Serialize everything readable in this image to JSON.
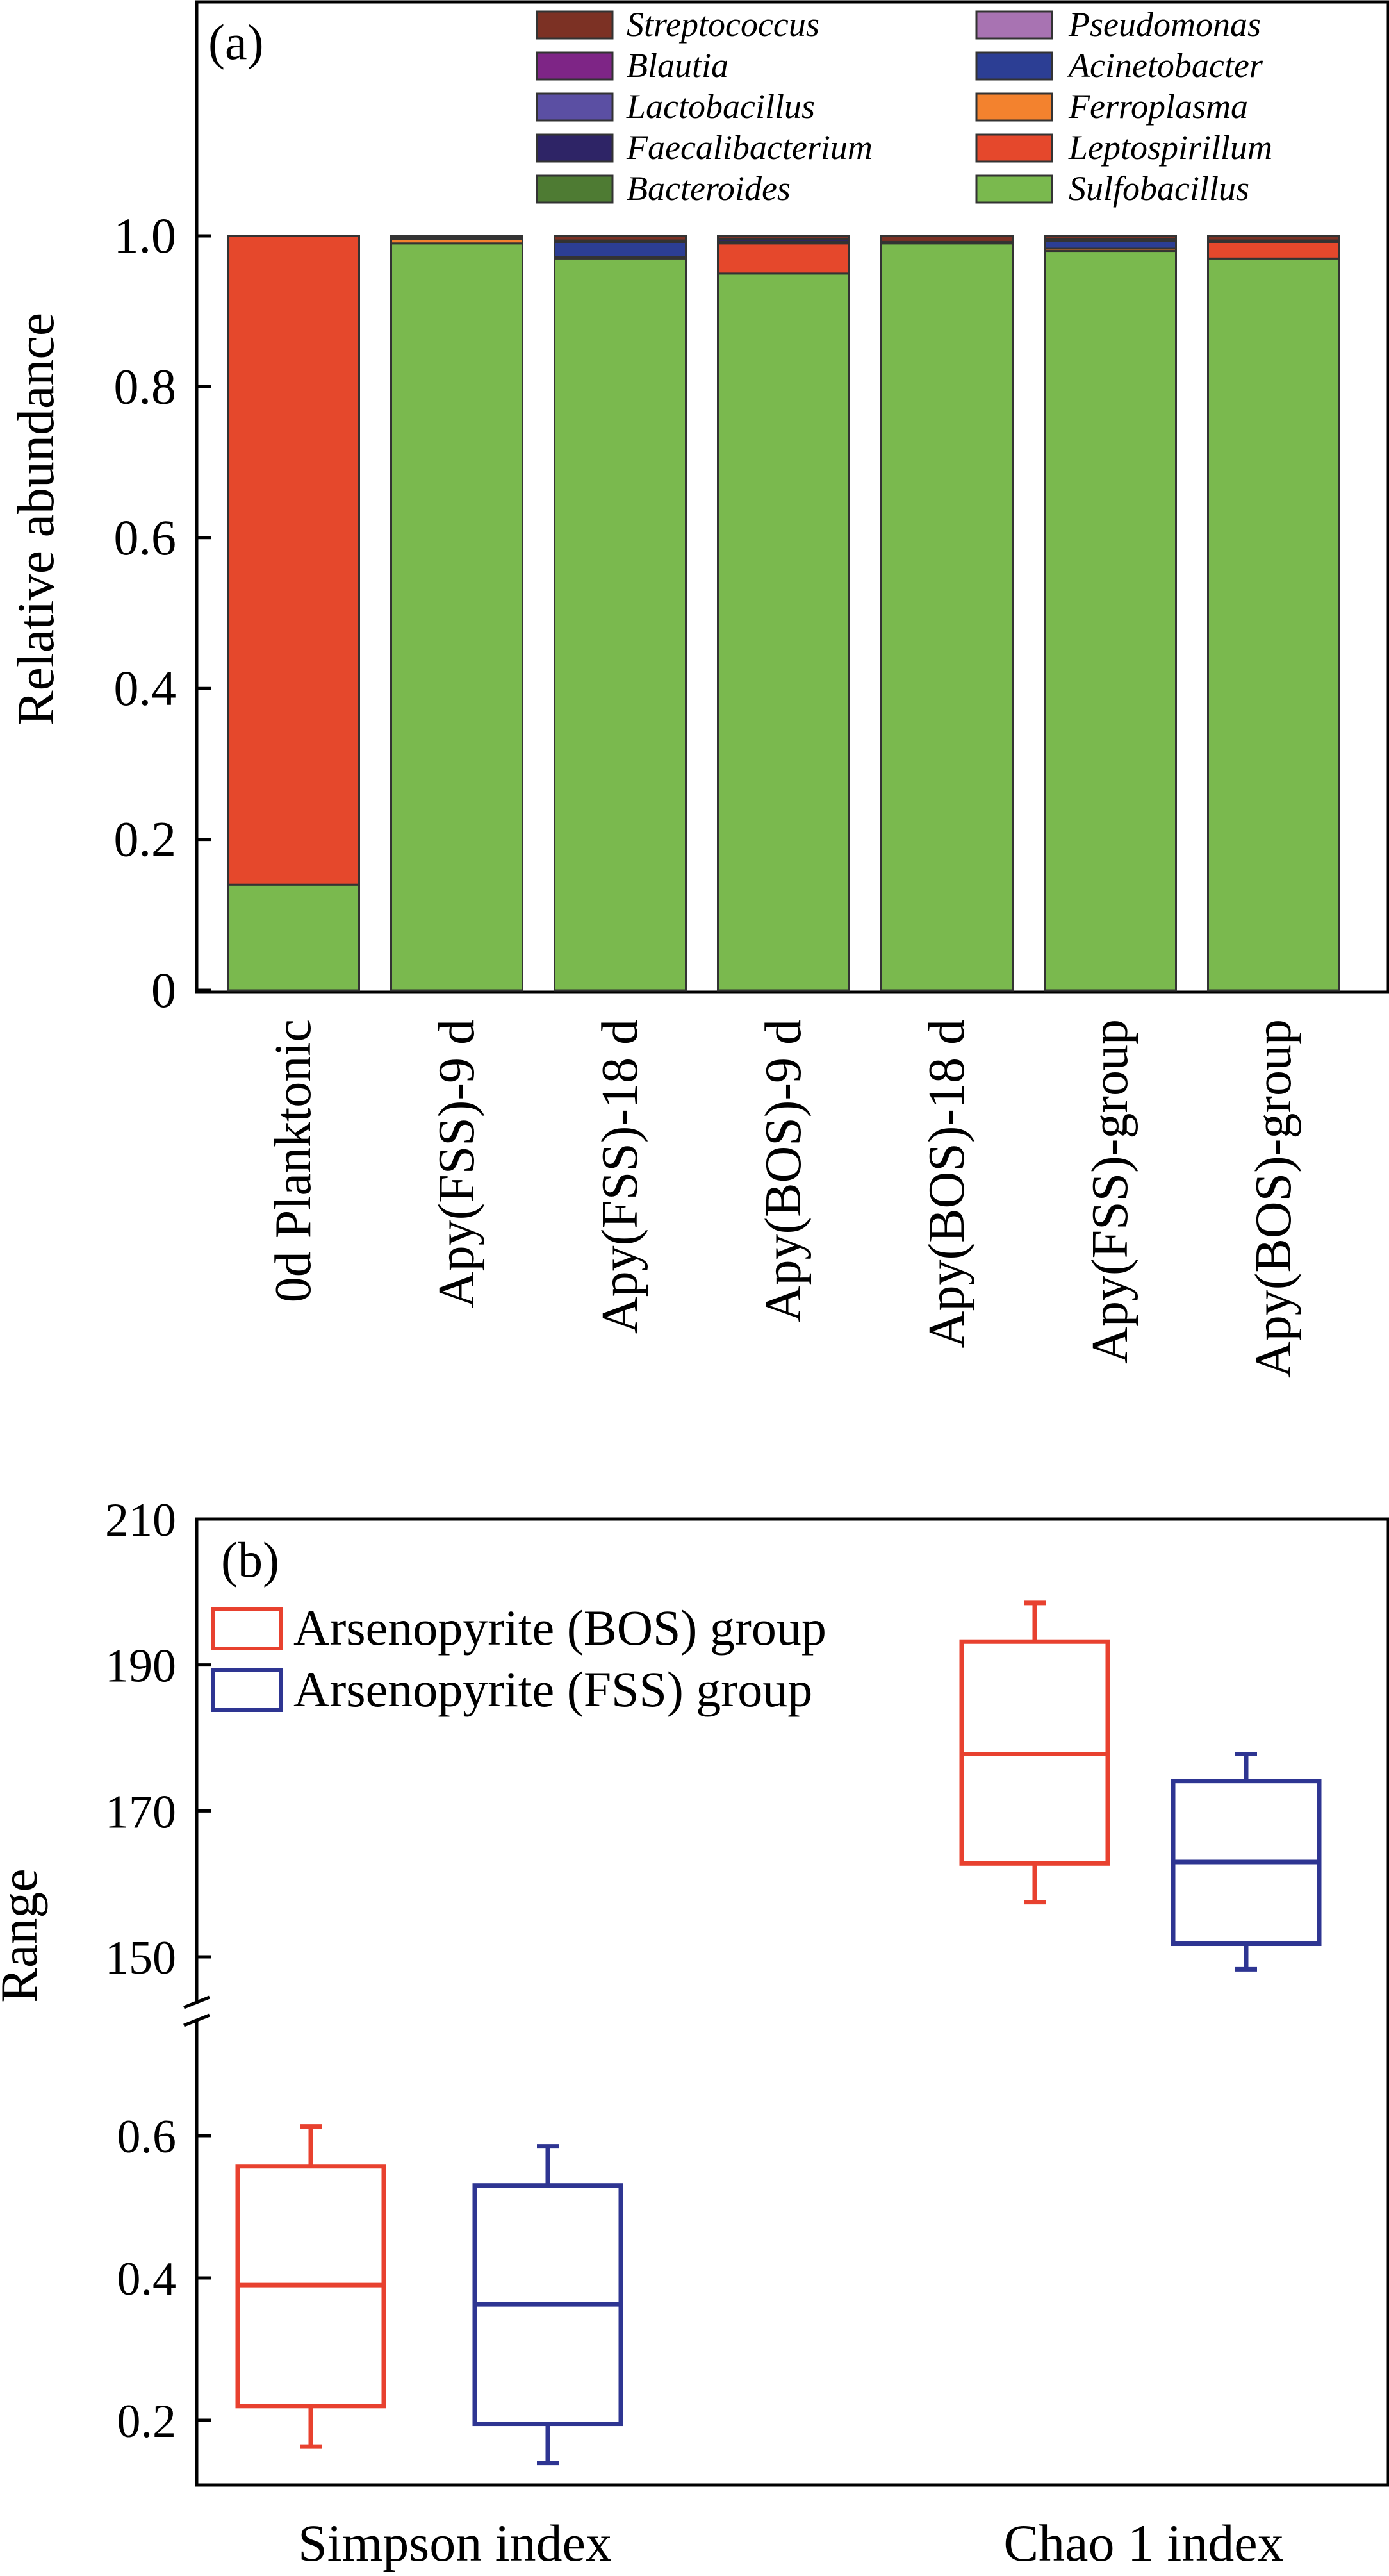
{
  "chart_data": [
    {
      "panel": "(a)",
      "type": "bar",
      "stacked": true,
      "ylabel": "Relative abundance",
      "ylim": [
        0,
        1.0
      ],
      "yticks": [
        "0",
        "0.2",
        "0.4",
        "0.6",
        "0.8",
        "1.0"
      ],
      "grid": false,
      "legend_position": "top",
      "categories": [
        "0d Planktonic",
        "Apy(FSS)-9 d",
        "Apy(FSS)-18 d",
        "Apy(BOS)-9 d",
        "Apy(BOS)-18 d",
        "Apy(FSS)-group",
        "Apy(BOS)-group"
      ],
      "series": [
        {
          "name": "Sulfobacillus",
          "color": "#7ab94e",
          "values": [
            0.14,
            0.99,
            0.97,
            0.95,
            0.99,
            0.98,
            0.97
          ]
        },
        {
          "name": "Leptospirillum",
          "color": "#e5482c",
          "values": [
            0.86,
            0.0,
            0.0,
            0.04,
            0.0,
            0.0,
            0.022
          ]
        },
        {
          "name": "Ferroplasma",
          "color": "#f3822e",
          "values": [
            0.0,
            0.006,
            0.002,
            0.002,
            0.002,
            0.003,
            0.002
          ]
        },
        {
          "name": "Acinetobacter",
          "color": "#2c3e94",
          "values": [
            0.0,
            0.0,
            0.02,
            0.0,
            0.0,
            0.01,
            0.0
          ]
        },
        {
          "name": "Pseudomonas",
          "color": "#a873b2",
          "values": [
            0.0,
            0.0,
            0.0,
            0.0,
            0.0,
            0.0,
            0.0
          ]
        },
        {
          "name": "Bacteroides",
          "color": "#4e7b33",
          "values": [
            0.0,
            0.0,
            0.0,
            0.0,
            0.0,
            0.0,
            0.0
          ]
        },
        {
          "name": "Faecalibacterium",
          "color": "#2e2466",
          "values": [
            0.0,
            0.002,
            0.002,
            0.004,
            0.0,
            0.003,
            0.0
          ]
        },
        {
          "name": "Lactobacillus",
          "color": "#5b4fa3",
          "values": [
            0.0,
            0.0,
            0.0,
            0.0,
            0.0,
            0.0,
            0.0
          ]
        },
        {
          "name": "Blautia",
          "color": "#7e2586",
          "values": [
            0.0,
            0.0,
            0.0,
            0.0,
            0.0,
            0.0,
            0.0
          ]
        },
        {
          "name": "Streptococcus",
          "color": "#7c3124",
          "values": [
            0.0,
            0.002,
            0.006,
            0.004,
            0.008,
            0.004,
            0.006
          ]
        }
      ],
      "legend_order": [
        "Streptococcus",
        "Blautia",
        "Lactobacillus",
        "Faecalibacterium",
        "Bacteroides",
        "Pseudomonas",
        "Acinetobacter",
        "Ferroplasma",
        "Leptospirillum",
        "Sulfobacillus"
      ]
    },
    {
      "panel": "(b)",
      "type": "box",
      "ylabel": "Range",
      "broken_axis": true,
      "upper_ylim": [
        147,
        210
      ],
      "upper_yticks": [
        "150",
        "170",
        "190",
        "210"
      ],
      "lower_ylim": [
        0.1,
        0.76
      ],
      "lower_yticks": [
        "0.2",
        "0.4",
        "0.6"
      ],
      "grid": false,
      "legend_position": "top-left",
      "categories": [
        "Simpson index",
        "Chao 1 index"
      ],
      "series": [
        {
          "name": "Arsenopyrite (BOS) group",
          "color": "#e8412f",
          "boxes": [
            {
              "category": "Simpson index",
              "min": 0.163,
              "q1": 0.22,
              "median": 0.39,
              "q3": 0.557,
              "max": 0.613
            },
            {
              "category": "Chao 1 index",
              "min": 157.5,
              "q1": 162.8,
              "median": 177.8,
              "q3": 193.2,
              "max": 198.5
            }
          ]
        },
        {
          "name": "Arsenopyrite (FSS) group",
          "color": "#2e3592",
          "boxes": [
            {
              "category": "Simpson index",
              "min": 0.14,
              "q1": 0.195,
              "median": 0.363,
              "q3": 0.53,
              "max": 0.585
            },
            {
              "category": "Chao 1 index",
              "min": 148.3,
              "q1": 151.8,
              "median": 163.0,
              "q3": 174.1,
              "max": 177.8
            }
          ]
        }
      ]
    }
  ]
}
